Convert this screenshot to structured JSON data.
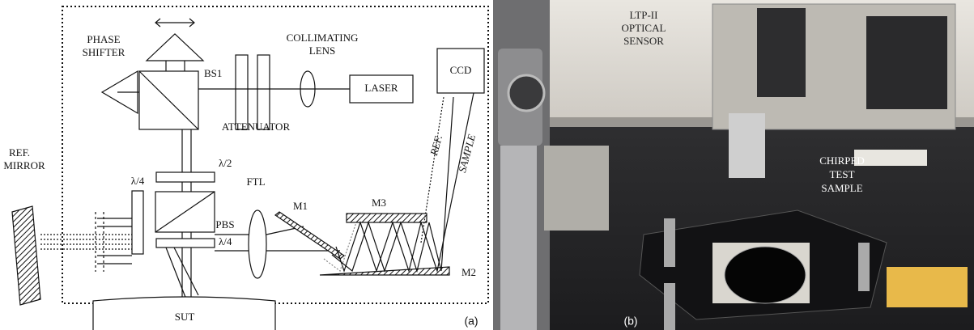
{
  "panel_a": {
    "phase_shifter": [
      "PHASE",
      "SHIFTER"
    ],
    "collimating_lens": [
      "COLLIMATING",
      "LENS"
    ],
    "bs1": "BS1",
    "laser": "LASER",
    "ccd": "CCD",
    "ref_mirror": [
      "REF.",
      "MIRROR"
    ],
    "attenuator": "ATTENUATOR",
    "half_wave": "λ/2",
    "quarter_wave_left": "λ/4",
    "quarter_wave_bottom": "λ/4",
    "ftl": "FTL",
    "m1": "M1",
    "m2": "M2",
    "m3": "M3",
    "pbs": "PBS",
    "ref_beam": "REF.",
    "sample_beam": "SAMPLE",
    "sut": "SUT",
    "label": "(a)"
  },
  "panel_b": {
    "sensor": [
      "LTP-II",
      "OPTICAL",
      "SENSOR"
    ],
    "sample": [
      "CHIRPED",
      "TEST",
      "SAMPLE"
    ],
    "label": "(b)"
  }
}
